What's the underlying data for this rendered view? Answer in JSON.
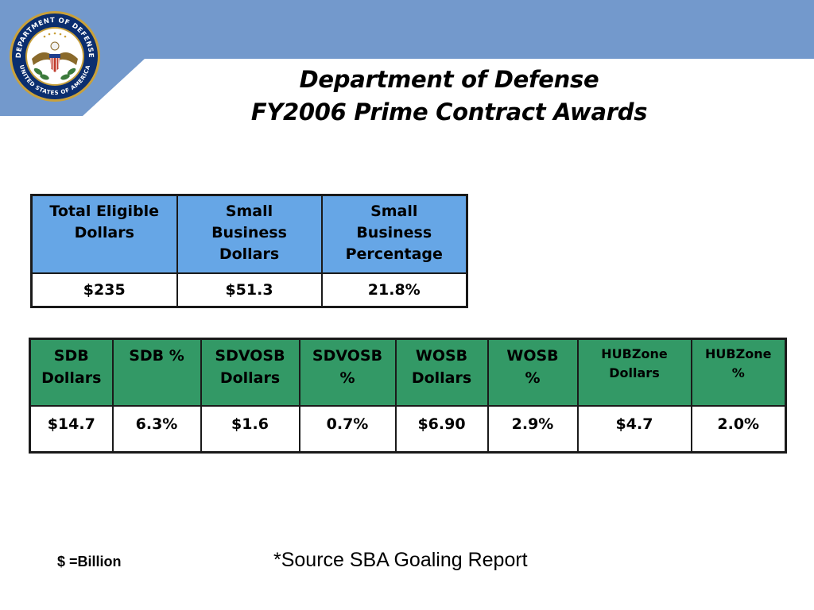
{
  "colors": {
    "banner_blue": "#7399cc",
    "table1_header": "#66a6e6",
    "table2_header": "#339966",
    "seal_ring": "#0b2e6f",
    "seal_gold": "#c9a13b"
  },
  "seal": {
    "text_top": "DEPARTMENT OF DEFENSE",
    "text_bottom": "UNITED STATES OF AMERICA"
  },
  "title": {
    "line1": "Department of Defense",
    "line2": "FY2006 Prime Contract Awards"
  },
  "summary_table": {
    "headers": [
      {
        "line1": "Total  Eligible",
        "line2": "Dollars",
        "line3": ""
      },
      {
        "line1": "Small",
        "line2": "Business",
        "line3": "Dollars"
      },
      {
        "line1": "Small",
        "line2": "Business",
        "line3": "Percentage"
      }
    ],
    "values": [
      "$235",
      "$51.3",
      "21.8%"
    ]
  },
  "category_table": {
    "headers": [
      {
        "line1": "SDB",
        "line2": "Dollars"
      },
      {
        "line1": "SDB %",
        "line2": ""
      },
      {
        "line1": "SDVOSB",
        "line2": "Dollars"
      },
      {
        "line1": "SDVOSB",
        "line2": "%"
      },
      {
        "line1": "WOSB",
        "line2": "Dollars"
      },
      {
        "line1": "WOSB",
        "line2": "%"
      },
      {
        "line1": "HUBZone",
        "line2": "Dollars"
      },
      {
        "line1": "HUBZone",
        "line2": "%"
      }
    ],
    "values": [
      "$14.7",
      "6.3%",
      "$1.6",
      "0.7%",
      "$6.90",
      "2.9%",
      "$4.7",
      "2.0%"
    ]
  },
  "footer": {
    "unit_note": "$ =Billion",
    "source": "*Source SBA Goaling Report"
  }
}
